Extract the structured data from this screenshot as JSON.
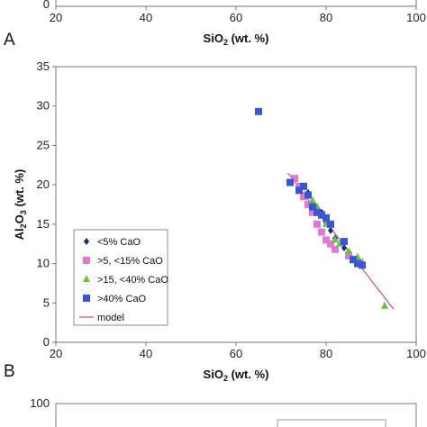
{
  "top_panel": {
    "x_ticks": [
      "20",
      "40",
      "60",
      "80",
      "100"
    ],
    "y_tick_visible": "0",
    "xlabel_main": "SiO",
    "xlabel_sub": "2",
    "xlabel_unit": " (wt. %)"
  },
  "panel_labels": {
    "a": "A",
    "b": "B"
  },
  "chart_data": {
    "type": "scatter",
    "xlabel_main": "SiO",
    "xlabel_sub": "2",
    "xlabel_unit": " (wt. %)",
    "ylabel_main1": "Al",
    "ylabel_sub1": "2",
    "ylabel_main2": "O",
    "ylabel_sub2": "3",
    "ylabel_unit": " (wt. %)",
    "xlim": [
      20,
      100
    ],
    "ylim": [
      0,
      35
    ],
    "x_ticks": [
      20,
      40,
      60,
      80,
      100
    ],
    "x_tick_labels": [
      "20",
      "40",
      "60",
      "80",
      "100"
    ],
    "y_ticks": [
      0,
      5,
      10,
      15,
      20,
      25,
      30,
      35
    ],
    "y_tick_labels": [
      "0",
      "5",
      "10",
      "15",
      "20",
      "25",
      "30",
      "35"
    ],
    "grid": false,
    "legend_position": "bottom-left",
    "series": [
      {
        "name": "<5% CaO",
        "marker": "diamond",
        "color": "#1a2a6c",
        "points": [
          [
            76,
            19
          ],
          [
            78,
            17
          ],
          [
            79,
            16.5
          ],
          [
            80,
            15.2
          ],
          [
            81,
            14.2
          ],
          [
            82,
            13.2
          ],
          [
            84,
            12
          ],
          [
            85,
            11.5
          ],
          [
            86,
            10.5
          ],
          [
            87,
            10
          ],
          [
            88,
            9.8
          ]
        ]
      },
      {
        "name": ">5, <15% CaO",
        "marker": "square",
        "color": "#e07ad0",
        "points": [
          [
            73,
            20.8
          ],
          [
            74,
            19.8
          ],
          [
            75,
            18.5
          ],
          [
            76,
            17.5
          ],
          [
            77,
            16.5
          ],
          [
            78,
            15
          ],
          [
            79,
            14
          ],
          [
            80,
            13
          ],
          [
            81,
            12.5
          ],
          [
            82,
            11.8
          ],
          [
            85,
            11
          ],
          [
            86,
            10.5
          ]
        ]
      },
      {
        "name": ">15, <40% CaO",
        "marker": "triangle",
        "color": "#6abf4b",
        "points": [
          [
            77,
            18
          ],
          [
            78,
            17.2
          ],
          [
            79,
            16
          ],
          [
            80,
            15
          ],
          [
            82,
            13
          ],
          [
            83,
            12.5
          ],
          [
            85,
            11.5
          ],
          [
            87,
            10.8
          ],
          [
            88,
            10.2
          ],
          [
            93,
            4.6
          ]
        ]
      },
      {
        "name": ">40% CaO",
        "marker": "square",
        "color": "#3a56d4",
        "points": [
          [
            65,
            29.3
          ],
          [
            72,
            20.3
          ],
          [
            74,
            19.3
          ],
          [
            75,
            19.8
          ],
          [
            76,
            18.7
          ],
          [
            77,
            17.2
          ],
          [
            78,
            16.5
          ],
          [
            79,
            16.2
          ],
          [
            80,
            15.8
          ],
          [
            81,
            15
          ],
          [
            84,
            12.8
          ],
          [
            86,
            10.5
          ],
          [
            87,
            10
          ],
          [
            88,
            9.8
          ]
        ]
      }
    ],
    "model": {
      "name": "model",
      "color": "#c06070",
      "points": [
        [
          71.5,
          21.5
        ],
        [
          95,
          4.2
        ]
      ]
    }
  },
  "bottom_panel": {
    "y_tick_visible": "100"
  }
}
